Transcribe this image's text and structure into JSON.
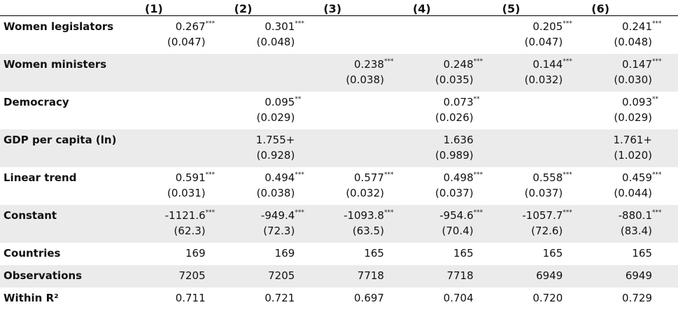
{
  "table": {
    "header": [
      "(1)",
      "(2)",
      "(3)",
      "(4)",
      "(5)",
      "(6)"
    ],
    "rows": [
      {
        "label": "Women legislators",
        "cells": [
          {
            "coef": "0.267",
            "stars": "***",
            "se": "(0.047)"
          },
          {
            "coef": "0.301",
            "stars": "***",
            "se": "(0.048)"
          },
          null,
          null,
          {
            "coef": "0.205",
            "stars": "***",
            "se": "(0.047)"
          },
          {
            "coef": "0.241",
            "stars": "***",
            "se": "(0.048)"
          }
        ]
      },
      {
        "label": "Women ministers",
        "cells": [
          null,
          null,
          {
            "coef": "0.238",
            "stars": "***",
            "se": "(0.038)"
          },
          {
            "coef": "0.248",
            "stars": "***",
            "se": "(0.035)"
          },
          {
            "coef": "0.144",
            "stars": "***",
            "se": "(0.032)"
          },
          {
            "coef": "0.147",
            "stars": "***",
            "se": "(0.030)"
          }
        ]
      },
      {
        "label": "Democracy",
        "cells": [
          null,
          {
            "coef": "0.095",
            "stars": "**",
            "se": "(0.029)"
          },
          null,
          {
            "coef": "0.073",
            "stars": "**",
            "se": "(0.026)"
          },
          null,
          {
            "coef": "0.093",
            "stars": "**",
            "se": "(0.029)"
          }
        ]
      },
      {
        "label": "GDP per capita (ln)",
        "cells": [
          null,
          {
            "coef": "1.755+",
            "se": "(0.928)"
          },
          null,
          {
            "coef": "1.636",
            "se": "(0.989)"
          },
          null,
          {
            "coef": "1.761+",
            "se": "(1.020)"
          }
        ]
      },
      {
        "label": "Linear trend",
        "cells": [
          {
            "coef": "0.591",
            "stars": "***",
            "se": "(0.031)"
          },
          {
            "coef": "0.494",
            "stars": "***",
            "se": "(0.038)"
          },
          {
            "coef": "0.577",
            "stars": "***",
            "se": "(0.032)"
          },
          {
            "coef": "0.498",
            "stars": "***",
            "se": "(0.037)"
          },
          {
            "coef": "0.558",
            "stars": "***",
            "se": "(0.037)"
          },
          {
            "coef": "0.459",
            "stars": "***",
            "se": "(0.044)"
          }
        ]
      },
      {
        "label": "Constant",
        "cells": [
          {
            "coef": "-1121.6",
            "stars": "***",
            "se": "(62.3)"
          },
          {
            "coef": "-949.4",
            "stars": "***",
            "se": "(72.3)"
          },
          {
            "coef": "-1093.8",
            "stars": "***",
            "se": "(63.5)"
          },
          {
            "coef": "-954.6",
            "stars": "***",
            "se": "(70.4)"
          },
          {
            "coef": "-1057.7",
            "stars": "***",
            "se": "(72.6)"
          },
          {
            "coef": "-880.1",
            "stars": "***",
            "se": "(83.4)"
          }
        ]
      },
      {
        "label": "Countries",
        "cells": [
          {
            "coef": "169"
          },
          {
            "coef": "169"
          },
          {
            "coef": "165"
          },
          {
            "coef": "165"
          },
          {
            "coef": "165"
          },
          {
            "coef": "165"
          }
        ]
      },
      {
        "label": "Observations",
        "cells": [
          {
            "coef": "7205"
          },
          {
            "coef": "7205"
          },
          {
            "coef": "7718"
          },
          {
            "coef": "7718"
          },
          {
            "coef": "6949"
          },
          {
            "coef": "6949"
          }
        ]
      },
      {
        "label": "Within R²",
        "cells": [
          {
            "coef": "0.711"
          },
          {
            "coef": "0.721"
          },
          {
            "coef": "0.697"
          },
          {
            "coef": "0.704"
          },
          {
            "coef": "0.720"
          },
          {
            "coef": "0.729"
          }
        ]
      }
    ]
  }
}
